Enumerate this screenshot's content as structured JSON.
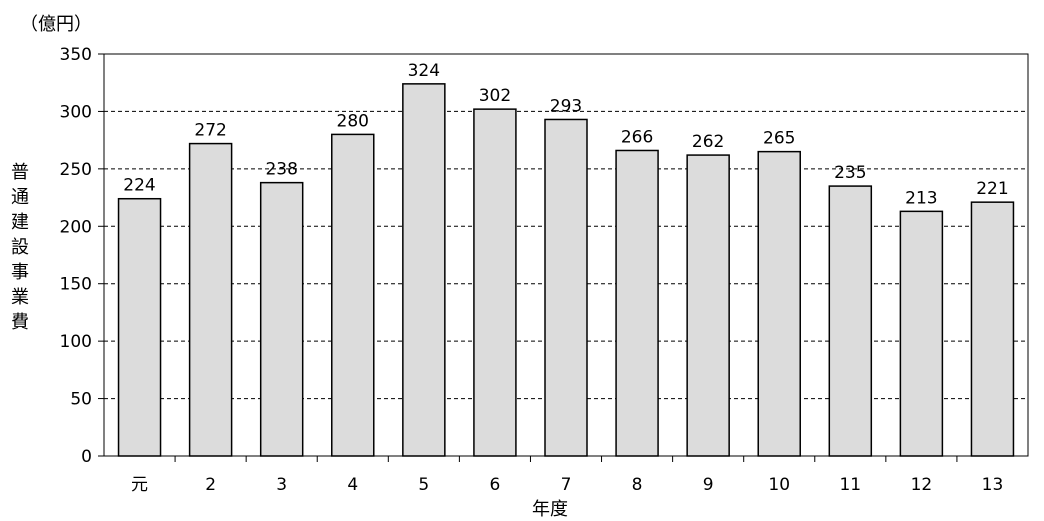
{
  "chart_data": {
    "type": "bar",
    "title": "",
    "unit_label": "（億円）",
    "ylabel": "普通建設事業費",
    "xlabel": "年度",
    "categories": [
      "元",
      "2",
      "3",
      "4",
      "5",
      "6",
      "7",
      "8",
      "9",
      "10",
      "11",
      "12",
      "13"
    ],
    "values": [
      224,
      272,
      238,
      280,
      324,
      302,
      293,
      266,
      262,
      265,
      235,
      213,
      221
    ],
    "data_labels": [
      "224",
      "272",
      "238",
      "280",
      "324",
      "302",
      "293",
      "266",
      "262",
      "265",
      "235",
      "213",
      "221"
    ],
    "ylim": [
      0,
      350
    ],
    "yticks": [
      0,
      50,
      100,
      150,
      200,
      250,
      300,
      350
    ],
    "grid": "horizontal dashed",
    "legend": "none",
    "colors": {
      "bar_fill": "#dcdcdc",
      "bar_stroke": "#000000",
      "grid": "#000000"
    }
  }
}
